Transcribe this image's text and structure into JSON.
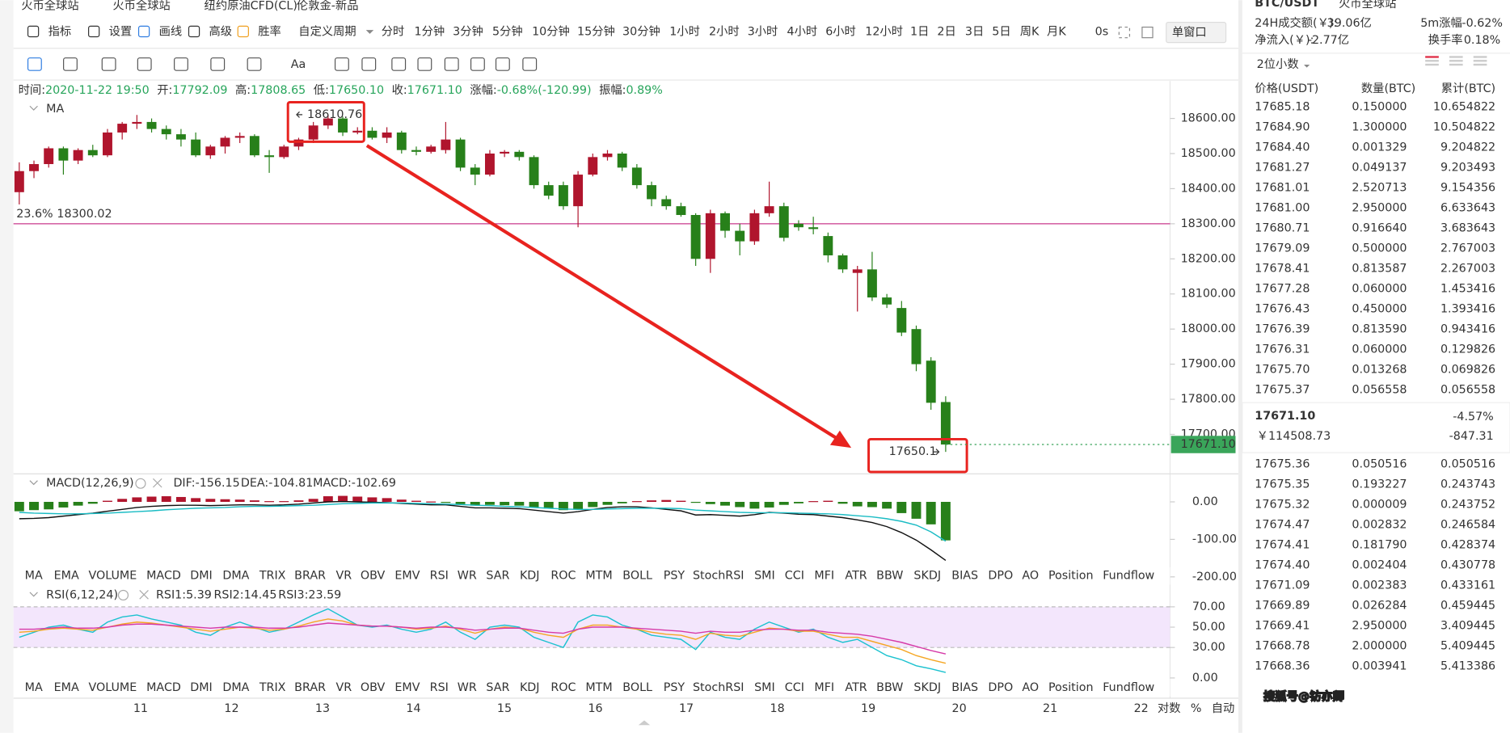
{
  "top_tabs": [
    "火币全球站",
    "火币全球站",
    "纽约原油CFD(CL)",
    "伦敦金-新品"
  ],
  "toolbar": {
    "tools": [
      "指标",
      "设置",
      "画线",
      "高级",
      "胜率"
    ],
    "tool_colors": [
      "#333333",
      "#333333",
      "#2f7de1",
      "#333333",
      "#f0a020"
    ],
    "period_menu": "自定义周期",
    "periods": [
      "分时",
      "1分钟",
      "3分钟",
      "5分钟",
      "10分钟",
      "15分钟",
      "30分钟",
      "1小时",
      "2小时",
      "3小时",
      "4小时",
      "6小时",
      "12小时",
      "1日",
      "2日",
      "3日",
      "5日",
      "周K",
      "月K"
    ],
    "active_period": 4,
    "active_color": "#2f7de1",
    "countdown": "0s",
    "window": "单窗口",
    "draw_text": "Aa"
  },
  "info": [
    [
      "时间:",
      "2020-11-22 19:50"
    ],
    [
      "开:",
      "17792.09"
    ],
    [
      "高:",
      "17808.65"
    ],
    [
      "低:",
      "17650.10"
    ],
    [
      "收:",
      "17671.10"
    ],
    [
      "涨幅:",
      "-0.68%(-120.99)"
    ],
    [
      "振幅:",
      "0.89%"
    ]
  ],
  "indicator_tabs": [
    "MA",
    "EMA",
    "VOLUME",
    "MACD",
    "DMI",
    "DMA",
    "TRIX",
    "BRAR",
    "VR",
    "OBV",
    "EMV",
    "RSI",
    "WR",
    "SAR",
    "KDJ",
    "ROC",
    "MTM",
    "BOLL",
    "PSY",
    "StochRSI",
    "SMI",
    "CCI",
    "MFI",
    "ATR",
    "BBW",
    "SKDJ",
    "BIAS",
    "DPO",
    "AO",
    "Position",
    "Fundflow"
  ],
  "dates": [
    "11",
    "12",
    "13",
    "14",
    "15",
    "16",
    "17",
    "18",
    "19",
    "20",
    "21",
    "22"
  ],
  "axis_options": [
    "对数",
    "%",
    "自动"
  ],
  "chart_data": [
    {
      "type": "candlestick",
      "indicator": "MA",
      "up_color": "#b0152d",
      "down_color": "#27801a",
      "ylim": [
        17593,
        18649
      ],
      "yticks": [
        {
          "value": 18600,
          "label": "18600.00"
        },
        {
          "value": 18500,
          "label": "18500.00"
        },
        {
          "value": 18400,
          "label": "18400.00"
        },
        {
          "value": 18300,
          "label": "18300.00"
        },
        {
          "value": 18200,
          "label": "18200.00"
        },
        {
          "value": 18100,
          "label": "18100.00"
        },
        {
          "value": 18000,
          "label": "18000.00"
        },
        {
          "value": 17900,
          "label": "17900.00"
        },
        {
          "value": 17800,
          "label": "17800.00"
        },
        {
          "value": 17700,
          "label": "17700.00"
        }
      ],
      "ohlc": [
        [
          18390,
          18475,
          18355,
          18450
        ],
        [
          18450,
          18480,
          18430,
          18470
        ],
        [
          18470,
          18520,
          18460,
          18515
        ],
        [
          18515,
          18520,
          18440,
          18480
        ],
        [
          18480,
          18515,
          18470,
          18510
        ],
        [
          18510,
          18525,
          18490,
          18495
        ],
        [
          18495,
          18570,
          18490,
          18560
        ],
        [
          18560,
          18590,
          18540,
          18585
        ],
        [
          18585,
          18610,
          18570,
          18590
        ],
        [
          18590,
          18600,
          18560,
          18570
        ],
        [
          18570,
          18580,
          18540,
          18555
        ],
        [
          18555,
          18570,
          18520,
          18540
        ],
        [
          18540,
          18560,
          18490,
          18495
        ],
        [
          18495,
          18525,
          18485,
          18520
        ],
        [
          18520,
          18550,
          18500,
          18545
        ],
        [
          18545,
          18560,
          18530,
          18550
        ],
        [
          18550,
          18555,
          18490,
          18495
        ],
        [
          18495,
          18510,
          18445,
          18490
        ],
        [
          18490,
          18525,
          18485,
          18520
        ],
        [
          18520,
          18545,
          18510,
          18540
        ],
        [
          18540,
          18590,
          18530,
          18580
        ],
        [
          18580,
          18610.76,
          18570,
          18600
        ],
        [
          18600,
          18605,
          18550,
          18560
        ],
        [
          18560,
          18575,
          18555,
          18565
        ],
        [
          18565,
          18575,
          18540,
          18545
        ],
        [
          18545,
          18575,
          18530,
          18560
        ],
        [
          18560,
          18565,
          18500,
          18510
        ],
        [
          18510,
          18520,
          18495,
          18505
        ],
        [
          18505,
          18525,
          18500,
          18520
        ],
        [
          18510,
          18590,
          18500,
          18540
        ],
        [
          18540,
          18545,
          18450,
          18460
        ],
        [
          18460,
          18470,
          18410,
          18440
        ],
        [
          18440,
          18510,
          18435,
          18500
        ],
        [
          18500,
          18510,
          18490,
          18505
        ],
        [
          18505,
          18510,
          18480,
          18490
        ],
        [
          18490,
          18495,
          18400,
          18410
        ],
        [
          18410,
          18420,
          18370,
          18380
        ],
        [
          18410,
          18420,
          18340,
          18350
        ],
        [
          18350,
          18450,
          18290,
          18440
        ],
        [
          18440,
          18500,
          18435,
          18490
        ],
        [
          18490,
          18510,
          18480,
          18500
        ],
        [
          18500,
          18505,
          18450,
          18460
        ],
        [
          18460,
          18470,
          18400,
          18410
        ],
        [
          18410,
          18420,
          18350,
          18370
        ],
        [
          18370,
          18380,
          18340,
          18350
        ],
        [
          18350,
          18360,
          18320,
          18325
        ],
        [
          18325,
          18330,
          18180,
          18200
        ],
        [
          18200,
          18340,
          18160,
          18330
        ],
        [
          18330,
          18335,
          18260,
          18280
        ],
        [
          18280,
          18300,
          18210,
          18250
        ],
        [
          18250,
          18340,
          18240,
          18330
        ],
        [
          18330,
          18420,
          18320,
          18350
        ],
        [
          18350,
          18360,
          18250,
          18260
        ],
        [
          18300,
          18310,
          18280,
          18290
        ],
        [
          18290,
          18320,
          18270,
          18285
        ],
        [
          18265,
          18275,
          18190,
          18210
        ],
        [
          18210,
          18215,
          18160,
          18170
        ],
        [
          18160,
          18180,
          18050,
          18170
        ],
        [
          18170,
          18220,
          18080,
          18090
        ],
        [
          18090,
          18100,
          18060,
          18070
        ],
        [
          18060,
          18080,
          17980,
          17990
        ],
        [
          18000,
          18010,
          17880,
          17900
        ],
        [
          17910,
          17920,
          17770,
          17790
        ],
        [
          17792.09,
          17808.65,
          17650.1,
          17671.1
        ]
      ],
      "fib": {
        "label": "23.6%",
        "value": 18300.02,
        "color": "#c8388c"
      },
      "marks": [
        18610.76,
        17650.1
      ],
      "last": {
        "value": 17671.1,
        "label": "17671.10",
        "color": "#3aa55a"
      }
    },
    {
      "type": "macd",
      "title": "MACD(12,26,9)",
      "up_color": "#b0152d",
      "down_color": "#27801a",
      "ylim": [
        -200,
        67
      ],
      "yticks": [
        {
          "value": 0,
          "label": "0.00"
        },
        {
          "value": -100,
          "label": "-100.00"
        },
        {
          "value": -200,
          "label": "-200.00"
        }
      ],
      "series": [
        {
          "name": "DIF:-156.15",
          "color": "#111111",
          "values": [
            -45,
            -44,
            -42,
            -38,
            -34,
            -30,
            -25,
            -20,
            -15,
            -12,
            -10,
            -9,
            -9,
            -10,
            -9,
            -8,
            -8,
            -9,
            -8,
            -6,
            -3,
            0,
            1,
            0,
            -1,
            -2,
            -4,
            -6,
            -8,
            -8,
            -12,
            -16,
            -16,
            -17,
            -18,
            -22,
            -26,
            -30,
            -26,
            -20,
            -15,
            -13,
            -13,
            -16,
            -20,
            -24,
            -35,
            -34,
            -36,
            -38,
            -34,
            -28,
            -30,
            -33,
            -34,
            -38,
            -42,
            -48,
            -55,
            -66,
            -82,
            -102,
            -128,
            -156.15
          ]
        },
        {
          "name": "DEA:-104.81",
          "color": "#1bbcc4",
          "values": [
            -28,
            -30,
            -31,
            -32,
            -32,
            -31,
            -30,
            -28,
            -26,
            -24,
            -21,
            -19,
            -17,
            -16,
            -15,
            -13,
            -12,
            -12,
            -11,
            -10,
            -9,
            -7,
            -5,
            -4,
            -3,
            -3,
            -3,
            -4,
            -5,
            -6,
            -7,
            -9,
            -10,
            -12,
            -13,
            -15,
            -17,
            -19,
            -20,
            -20,
            -19,
            -18,
            -17,
            -17,
            -17,
            -18,
            -22,
            -24,
            -26,
            -28,
            -29,
            -29,
            -29,
            -30,
            -31,
            -32,
            -34,
            -37,
            -40,
            -45,
            -52,
            -62,
            -80,
            -104.81
          ]
        },
        {
          "name": "MACD:-102.69",
          "color": "#1fa58a",
          "values": [
            -25,
            -22,
            -20,
            -15,
            -10,
            -5,
            3,
            8,
            12,
            14,
            15,
            13,
            10,
            8,
            7,
            6,
            4,
            2,
            2,
            4,
            8,
            15,
            16,
            14,
            12,
            10,
            6,
            3,
            1,
            -2,
            -6,
            -10,
            -8,
            -9,
            -10,
            -14,
            -18,
            -22,
            -20,
            -14,
            -8,
            -4,
            2,
            4,
            5,
            3,
            -2,
            -6,
            -10,
            -14,
            -18,
            -15,
            -8,
            -4,
            2,
            3,
            -5,
            -12,
            -14,
            -18,
            -30,
            -45,
            -60,
            -102.69
          ]
        }
      ]
    },
    {
      "type": "rsi",
      "title": "RSI(6,12,24)",
      "ylim": [
        0,
        90
      ],
      "band": [
        30,
        70
      ],
      "band_color": "#f3e6fc",
      "yticks": [
        {
          "value": 70,
          "label": "70.00"
        },
        {
          "value": 50,
          "label": "50.00"
        },
        {
          "value": 30,
          "label": "30.00"
        },
        {
          "value": 0,
          "label": "0.00"
        }
      ],
      "series": [
        {
          "name": "RSI1:5.39",
          "color": "#1bc2cf",
          "values": [
            40,
            45,
            50,
            52,
            48,
            45,
            55,
            60,
            62,
            58,
            55,
            52,
            45,
            42,
            50,
            55,
            50,
            45,
            48,
            55,
            62,
            68,
            60,
            52,
            50,
            52,
            48,
            45,
            48,
            55,
            45,
            38,
            50,
            52,
            50,
            40,
            35,
            30,
            55,
            62,
            60,
            52,
            48,
            42,
            40,
            38,
            28,
            45,
            40,
            38,
            48,
            55,
            50,
            45,
            48,
            40,
            35,
            38,
            30,
            22,
            18,
            12,
            9,
            5.39
          ]
        },
        {
          "name": "RSI2:14.45",
          "color": "#f5a623",
          "values": [
            45,
            46,
            48,
            49,
            48,
            47,
            50,
            53,
            55,
            54,
            52,
            50,
            48,
            46,
            48,
            50,
            49,
            47,
            48,
            51,
            55,
            58,
            56,
            52,
            51,
            51,
            50,
            48,
            49,
            51,
            48,
            44,
            48,
            50,
            49,
            45,
            42,
            40,
            48,
            52,
            52,
            50,
            48,
            45,
            43,
            42,
            38,
            44,
            42,
            41,
            45,
            49,
            48,
            46,
            46,
            43,
            40,
            40,
            36,
            32,
            28,
            22,
            18,
            14.45
          ]
        },
        {
          "name": "RSI3:23.59",
          "color": "#d63aa8",
          "values": [
            48,
            48,
            49,
            50,
            49,
            49,
            50,
            52,
            53,
            53,
            52,
            51,
            50,
            49,
            50,
            50,
            50,
            49,
            49,
            50,
            52,
            54,
            53,
            52,
            51,
            51,
            50,
            49,
            50,
            50,
            49,
            47,
            48,
            49,
            49,
            47,
            45,
            44,
            48,
            50,
            50,
            50,
            49,
            48,
            47,
            46,
            44,
            46,
            45,
            45,
            47,
            48,
            48,
            47,
            47,
            45,
            44,
            43,
            41,
            38,
            35,
            31,
            27,
            23.59
          ]
        }
      ]
    }
  ],
  "orderbook": {
    "pair": "BTC/USDT",
    "exchange": "火币全球站",
    "stats": [
      {
        "label": "24H成交额(￥):",
        "value": "39.06亿",
        "color": "#333333"
      },
      {
        "label": "5m涨幅",
        "value": "-0.62%",
        "color": "#27a55b"
      },
      {
        "label": "净流入(￥):",
        "value": "-2.77亿",
        "color": "#27a55b"
      },
      {
        "label": "换手率",
        "value": "0.18%",
        "color": "#333333"
      }
    ],
    "precision": "2位小数",
    "columns": [
      "价格(USDT)",
      "数量(BTC)",
      "累计(BTC)"
    ],
    "ask_color": "#27a55b",
    "bid_color": "#e0324a",
    "asks": [
      [
        "17685.18",
        "0.150000",
        "10.654822"
      ],
      [
        "17684.90",
        "1.300000",
        "10.504822"
      ],
      [
        "17684.40",
        "0.001329",
        "9.204822"
      ],
      [
        "17681.27",
        "0.049137",
        "9.203493"
      ],
      [
        "17681.01",
        "2.520713",
        "9.154356"
      ],
      [
        "17681.00",
        "2.950000",
        "6.633643"
      ],
      [
        "17680.71",
        "0.916640",
        "3.683643"
      ],
      [
        "17679.09",
        "0.500000",
        "2.767003"
      ],
      [
        "17678.41",
        "0.813587",
        "2.267003"
      ],
      [
        "17677.28",
        "0.060000",
        "1.453416"
      ],
      [
        "17676.43",
        "0.450000",
        "1.393416"
      ],
      [
        "17676.39",
        "0.813590",
        "0.943416"
      ],
      [
        "17676.31",
        "0.060000",
        "0.129826"
      ],
      [
        "17675.70",
        "0.013268",
        "0.069826"
      ],
      [
        "17675.37",
        "0.056558",
        "0.056558"
      ]
    ],
    "last": {
      "price": "17671.10",
      "change": "-4.57%",
      "cny": "￥114508.73",
      "diff": "-847.31"
    },
    "bids": [
      [
        "17675.36",
        "0.050516",
        "0.050516"
      ],
      [
        "17675.35",
        "0.193227",
        "0.243743"
      ],
      [
        "17675.32",
        "0.000009",
        "0.243752"
      ],
      [
        "17674.47",
        "0.002832",
        "0.246584"
      ],
      [
        "17674.41",
        "0.181790",
        "0.428374"
      ],
      [
        "17674.40",
        "0.002404",
        "0.430778"
      ],
      [
        "17671.09",
        "0.002383",
        "0.433161"
      ],
      [
        "17669.89",
        "0.026284",
        "0.459445"
      ],
      [
        "17669.41",
        "2.950000",
        "3.409445"
      ],
      [
        "17668.78",
        "2.000000",
        "5.409445"
      ],
      [
        "17668.36",
        "0.003941",
        "5.413386"
      ]
    ]
  },
  "watermark": "搜狐号@钫亦卿"
}
